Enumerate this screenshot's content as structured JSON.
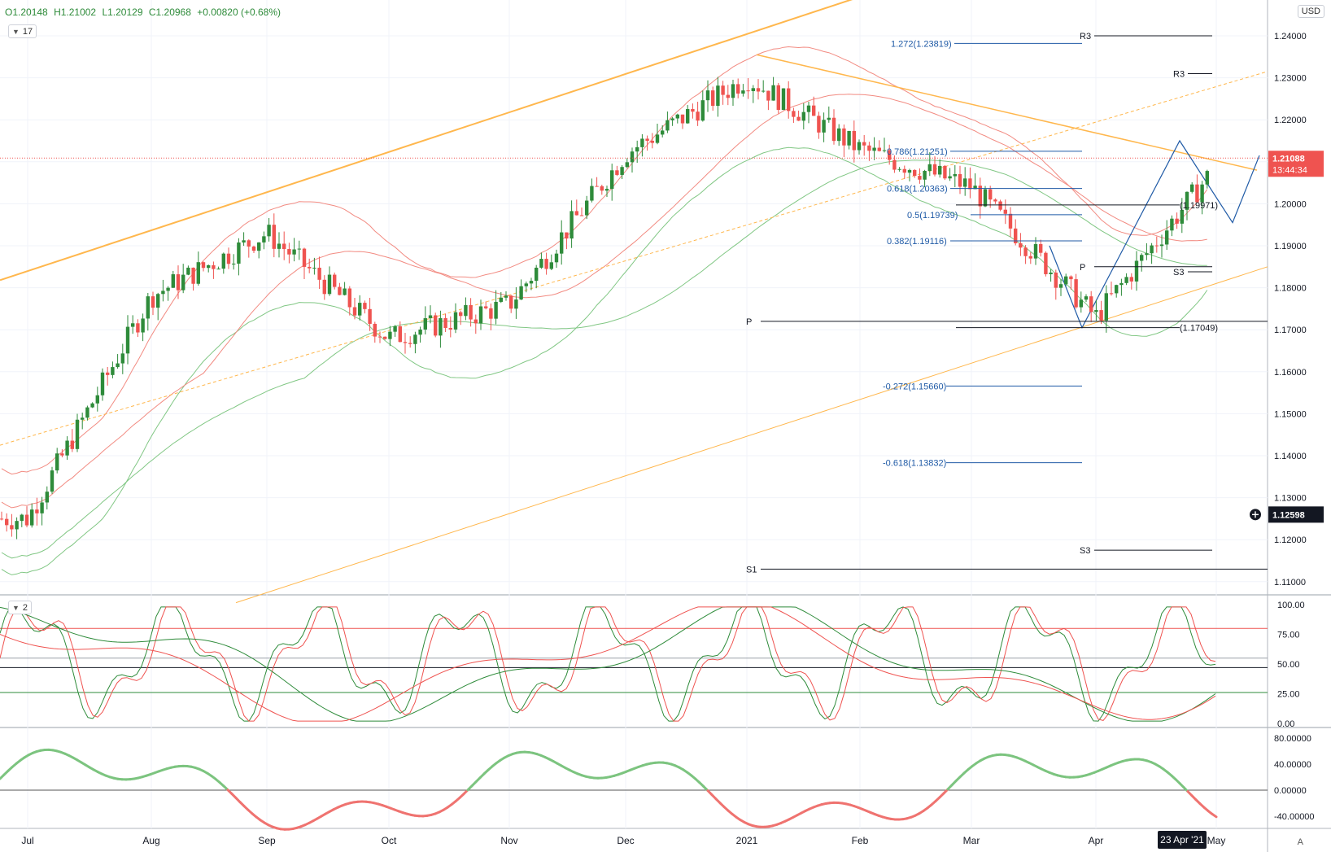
{
  "header": {
    "ohlc": [
      "O1.20148",
      "H1.21002",
      "L1.20129",
      "C1.20968",
      "+0.00820 (+0.68%)"
    ],
    "currency": "USD",
    "main_indicator_count": "17",
    "stoch_indicator_count": "2",
    "auto_label": "A"
  },
  "price_panel": {
    "last_price": "1.21088",
    "countdown": "13:44:34",
    "crosshair_price": "1.12598",
    "right_axis_ticks": [
      "1.24000",
      "1.23000",
      "1.22000",
      "1.21000",
      "1.20000",
      "1.19000",
      "1.18000",
      "1.17000",
      "1.16000",
      "1.15000",
      "1.14000",
      "1.13000",
      "1.12000",
      "1.11000"
    ],
    "fib_labels": [
      "1.272(1.23819)",
      "0.618(1.20363)",
      "0.5(1.19739)",
      "0.382(1.19116)",
      "-0.272(1.15660)",
      "-0.618(1.13832)",
      "0.786(1.21251)"
    ],
    "level_labels": [
      "R3",
      "R3",
      "P",
      "S3",
      "P",
      "S3",
      "S1",
      "(1.19971)",
      "(1.17049)"
    ]
  },
  "stoch_panel": {
    "ticks": [
      "100.00",
      "75.00",
      "50.00",
      "25.00",
      "0.00"
    ]
  },
  "osc_panel": {
    "ticks": [
      "80.00000",
      "40.00000",
      "0.00000",
      "-40.00000"
    ]
  },
  "time_axis": {
    "labels": [
      "Jul",
      "Aug",
      "Sep",
      "Oct",
      "Nov",
      "Dec",
      "2021",
      "Feb",
      "Mar",
      "Apr",
      "May"
    ],
    "highlight": "23 Apr '21"
  },
  "colors": {
    "up": "#2e8b3a",
    "down": "#ef5350",
    "trend": "#ffb74d",
    "fib": "#1f5aa6",
    "boll_red": "#f28b82",
    "boll_green": "#81c784"
  },
  "chart_data": {
    "type": "line",
    "title": "",
    "xlabel": "",
    "ylabel": "",
    "x": [
      "Jul",
      "Aug",
      "Sep",
      "Oct",
      "Nov",
      "Dec",
      "2021",
      "Feb",
      "Mar",
      "Apr",
      "May"
    ],
    "ylim": [
      1.105,
      1.245
    ],
    "series": [
      {
        "values": [
          1.125,
          1.178,
          1.193,
          1.168,
          1.176,
          1.212,
          1.23,
          1.213,
          1.204,
          1.173,
          1.209
        ]
      }
    ],
    "levels": [
      1.23819,
      1.21251,
      1.20363,
      1.19971,
      1.19739,
      1.19116,
      1.17049,
      1.1566,
      1.13832
    ]
  }
}
